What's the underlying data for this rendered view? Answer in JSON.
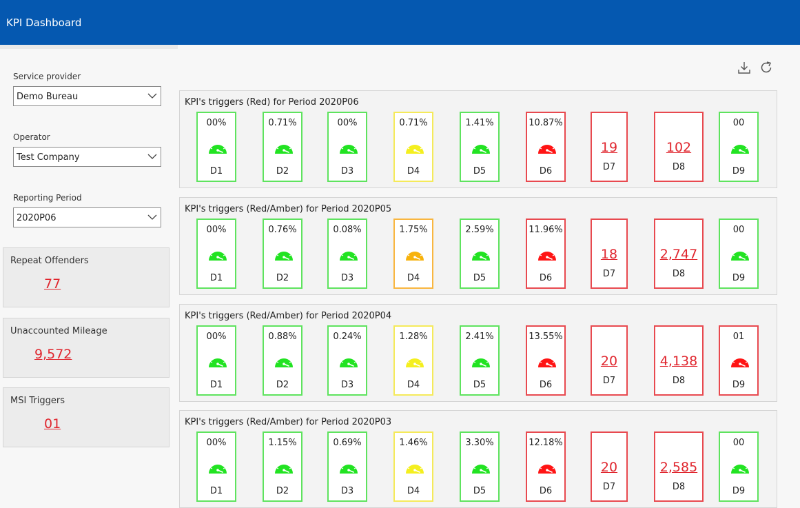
{
  "app": {
    "title": "KPI Dashboard"
  },
  "colors": {
    "header": "#0558b0",
    "green": "#22e322",
    "yellow": "#f4ef1f",
    "orange": "#f7b20c",
    "red": "#ff1414",
    "link_red": "#e0262e"
  },
  "filters": {
    "service_provider": {
      "label": "Service provider",
      "value": "Demo Bureau"
    },
    "operator": {
      "label": "Operator",
      "value": "Test Company"
    },
    "reporting_period": {
      "label": "Reporting Period",
      "value": "2020P06"
    }
  },
  "cards": [
    {
      "title": "Repeat Offenders",
      "value": "77"
    },
    {
      "title": "Unaccounted Mileage",
      "value": "9,572"
    },
    {
      "title": "MSI Triggers",
      "value": "01"
    }
  ],
  "toolbar": {
    "download_icon": "download-icon",
    "refresh_icon": "refresh-icon"
  },
  "panels": [
    {
      "title": "KPI's triggers (Red) for Period 2020P06",
      "tiles": [
        {
          "label": "D1",
          "value": "00%",
          "status": "green"
        },
        {
          "label": "D2",
          "value": "0.71%",
          "status": "green"
        },
        {
          "label": "D3",
          "value": "00%",
          "status": "green"
        },
        {
          "label": "D4",
          "value": "0.71%",
          "status": "yellow"
        },
        {
          "label": "D5",
          "value": "1.41%",
          "status": "green"
        },
        {
          "label": "D6",
          "value": "10.87%",
          "status": "red"
        },
        {
          "label": "D7",
          "value": "19",
          "status": "red"
        },
        {
          "label": "D8",
          "value": "102",
          "status": "red"
        },
        {
          "label": "D9",
          "value": "00",
          "status": "green"
        }
      ]
    },
    {
      "title": "KPI's triggers (Red/Amber) for Period 2020P05",
      "tiles": [
        {
          "label": "D1",
          "value": "00%",
          "status": "green"
        },
        {
          "label": "D2",
          "value": "0.76%",
          "status": "green"
        },
        {
          "label": "D3",
          "value": "0.08%",
          "status": "green"
        },
        {
          "label": "D4",
          "value": "1.75%",
          "status": "orange"
        },
        {
          "label": "D5",
          "value": "2.59%",
          "status": "green"
        },
        {
          "label": "D6",
          "value": "11.96%",
          "status": "red"
        },
        {
          "label": "D7",
          "value": "18",
          "status": "red"
        },
        {
          "label": "D8",
          "value": "2,747",
          "status": "red"
        },
        {
          "label": "D9",
          "value": "00",
          "status": "green"
        }
      ]
    },
    {
      "title": "KPI's triggers (Red/Amber) for Period 2020P04",
      "tiles": [
        {
          "label": "D1",
          "value": "00%",
          "status": "green"
        },
        {
          "label": "D2",
          "value": "0.88%",
          "status": "green"
        },
        {
          "label": "D3",
          "value": "0.24%",
          "status": "green"
        },
        {
          "label": "D4",
          "value": "1.28%",
          "status": "yellow"
        },
        {
          "label": "D5",
          "value": "2.41%",
          "status": "green"
        },
        {
          "label": "D6",
          "value": "13.55%",
          "status": "red"
        },
        {
          "label": "D7",
          "value": "20",
          "status": "red"
        },
        {
          "label": "D8",
          "value": "4,138",
          "status": "red"
        },
        {
          "label": "D9",
          "value": "01",
          "status": "red"
        }
      ]
    },
    {
      "title": "KPI's triggers (Red/Amber) for Period 2020P03",
      "tiles": [
        {
          "label": "D1",
          "value": "00%",
          "status": "green"
        },
        {
          "label": "D2",
          "value": "1.15%",
          "status": "green"
        },
        {
          "label": "D3",
          "value": "0.69%",
          "status": "green"
        },
        {
          "label": "D4",
          "value": "1.46%",
          "status": "yellow"
        },
        {
          "label": "D5",
          "value": "3.30%",
          "status": "green"
        },
        {
          "label": "D6",
          "value": "12.18%",
          "status": "red"
        },
        {
          "label": "D7",
          "value": "20",
          "status": "red"
        },
        {
          "label": "D8",
          "value": "2,585",
          "status": "red"
        },
        {
          "label": "D9",
          "value": "00",
          "status": "green"
        }
      ]
    }
  ]
}
